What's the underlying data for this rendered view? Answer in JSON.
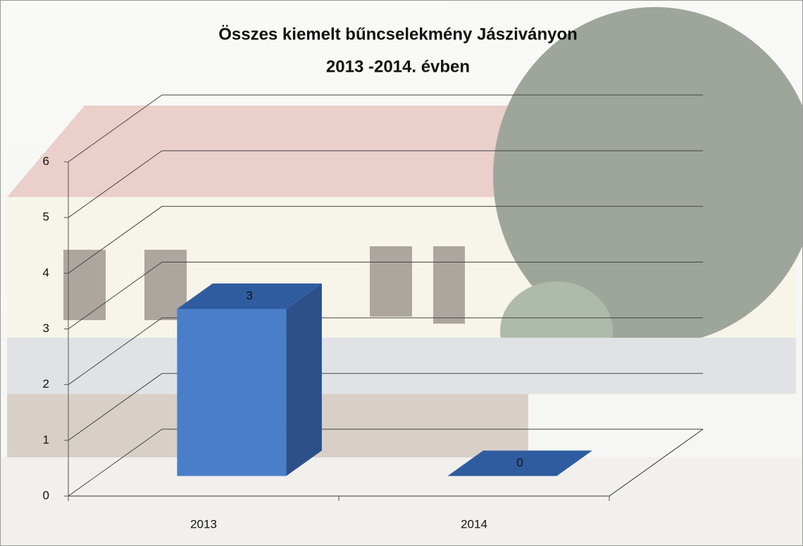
{
  "chart_data": {
    "type": "bar3d",
    "title": [
      "Összes kiemelt bűncselekmény  Jásziványon",
      "2013 -2014. évben"
    ],
    "categories": [
      "2013",
      "2014"
    ],
    "values": [
      3,
      0
    ],
    "color": "#4a7ec8",
    "ylim": [
      0,
      6
    ],
    "yticks": [
      0,
      1,
      2,
      3,
      4,
      5,
      6
    ],
    "grid": true
  }
}
